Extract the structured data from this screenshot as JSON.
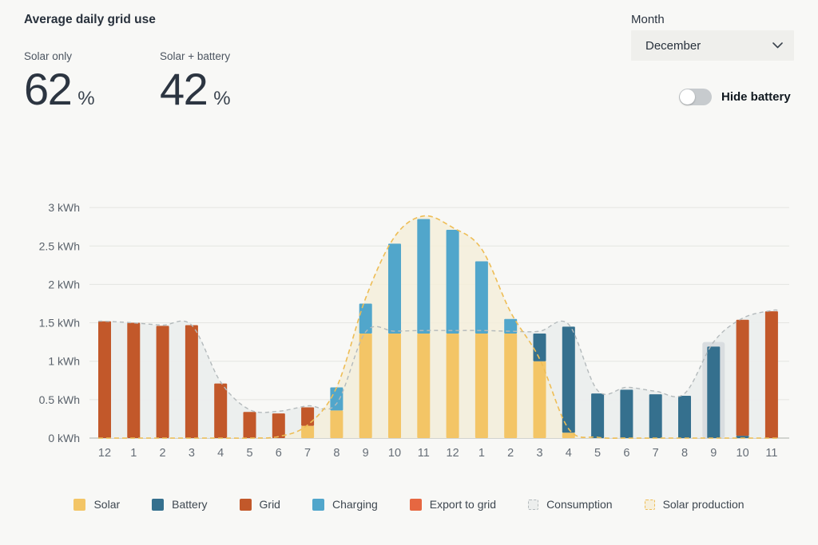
{
  "header": {
    "title": "Average daily grid use"
  },
  "stats": [
    {
      "label": "Solar only",
      "value": "62",
      "unit": "%"
    },
    {
      "label": "Solar + battery",
      "value": "42",
      "unit": "%"
    }
  ],
  "controls": {
    "month_label": "Month",
    "month_value": "December",
    "toggle_label": "Hide battery",
    "toggle_state": "off"
  },
  "colors": {
    "background": "#f8f8f6",
    "text_dark": "#28313c",
    "text_muted": "#4c5560",
    "axis_text": "#5a626b",
    "gridline": "#e4e5e1",
    "baseline": "#c6c8c3",
    "highlight_band": "#d9dde0"
  },
  "chart_data": {
    "type": "bar",
    "stacked": true,
    "unit": "kWh",
    "ylim": [
      0,
      3
    ],
    "yticks": [
      0,
      0.5,
      1,
      1.5,
      2,
      2.5,
      3
    ],
    "grid": true,
    "legend_position": "bottom",
    "categories": [
      "12",
      "1",
      "2",
      "3",
      "4",
      "5",
      "6",
      "7",
      "8",
      "9",
      "10",
      "11",
      "12",
      "1",
      "2",
      "3",
      "4",
      "5",
      "6",
      "7",
      "8",
      "9",
      "10",
      "11"
    ],
    "series": [
      {
        "name": "Solar",
        "color": "#f3c566",
        "values": [
          0,
          0,
          0,
          0,
          0,
          0,
          0,
          0.16,
          0.36,
          1.36,
          1.36,
          1.36,
          1.36,
          1.36,
          1.36,
          1.0,
          0.07,
          0,
          0,
          0,
          0,
          0,
          0,
          0
        ]
      },
      {
        "name": "Battery",
        "color": "#35708e",
        "values": [
          0,
          0,
          0,
          0,
          0,
          0,
          0,
          0,
          0,
          0,
          0,
          0,
          0,
          0,
          0,
          0.36,
          1.38,
          0.58,
          0.63,
          0.57,
          0.55,
          1.19,
          0.03,
          0
        ]
      },
      {
        "name": "Grid",
        "color": "#c2582a",
        "values": [
          1.52,
          1.5,
          1.46,
          1.47,
          0.71,
          0.34,
          0.32,
          0.24,
          0,
          0,
          0,
          0,
          0,
          0,
          0,
          0,
          0,
          0,
          0,
          0,
          0,
          0,
          1.51,
          1.65
        ]
      },
      {
        "name": "Charging",
        "color": "#51a6cb",
        "values": [
          0,
          0,
          0,
          0,
          0,
          0,
          0,
          0,
          0.3,
          0.39,
          1.17,
          1.49,
          1.35,
          0.94,
          0.19,
          0,
          0,
          0,
          0,
          0,
          0,
          0,
          0,
          0
        ]
      }
    ],
    "lines": [
      {
        "name": "Consumption",
        "fill": "#ebeeed",
        "stroke": "#b4babc",
        "values": [
          1.52,
          1.5,
          1.47,
          1.47,
          0.73,
          0.37,
          0.35,
          0.42,
          0.45,
          1.38,
          1.39,
          1.4,
          1.4,
          1.4,
          1.39,
          1.39,
          1.48,
          0.62,
          0.66,
          0.61,
          0.58,
          1.25,
          1.56,
          1.66
        ]
      },
      {
        "name": "Solar production",
        "fill": "#f5eedb",
        "stroke": "#eebd55",
        "values": [
          0,
          0,
          0,
          0,
          0,
          0,
          0.02,
          0.17,
          0.66,
          1.82,
          2.62,
          2.89,
          2.74,
          2.46,
          1.64,
          1.03,
          0.12,
          0.01,
          0,
          0,
          0,
          0,
          0,
          0
        ]
      }
    ],
    "highlight": {
      "index": 21,
      "value": 1.25
    }
  },
  "legend": [
    {
      "label": "Solar",
      "type": "solid",
      "color": "#f3c566"
    },
    {
      "label": "Battery",
      "type": "solid",
      "color": "#35708e"
    },
    {
      "label": "Grid",
      "type": "solid",
      "color": "#c2582a"
    },
    {
      "label": "Charging",
      "type": "solid",
      "color": "#51a6cb"
    },
    {
      "label": "Export to grid",
      "type": "solid",
      "color": "#e66741"
    },
    {
      "label": "Consumption",
      "type": "dashed",
      "color": "#b4babc",
      "fill": "#eceeed"
    },
    {
      "label": "Solar production",
      "type": "dashed",
      "color": "#eebd55",
      "fill": "#f6efdc"
    }
  ]
}
